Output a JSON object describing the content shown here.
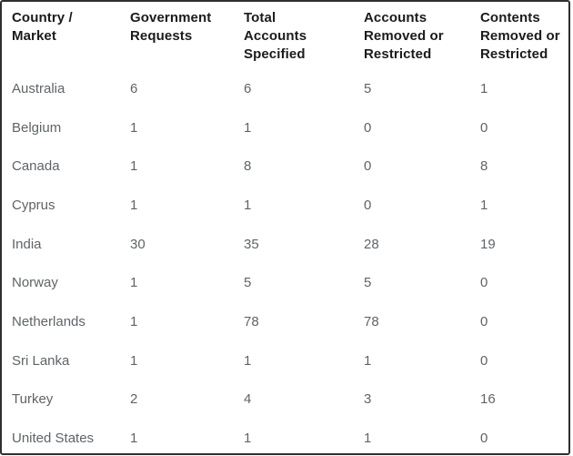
{
  "chart_data": {
    "type": "table",
    "columns": [
      "Country / Market",
      "Government Requests",
      "Total Accounts Specified",
      "Accounts Removed or Restricted",
      "Contents Removed or Restricted"
    ],
    "rows": [
      [
        "Australia",
        "6",
        "6",
        "5",
        "1"
      ],
      [
        "Belgium",
        "1",
        "1",
        "0",
        "0"
      ],
      [
        "Canada",
        "1",
        "8",
        "0",
        "8"
      ],
      [
        "Cyprus",
        "1",
        "1",
        "0",
        "1"
      ],
      [
        "India",
        "30",
        "35",
        "28",
        "19"
      ],
      [
        "Norway",
        "1",
        "5",
        "5",
        "0"
      ],
      [
        "Netherlands",
        "1",
        "78",
        "78",
        "0"
      ],
      [
        "Sri Lanka",
        "1",
        "1",
        "1",
        "0"
      ],
      [
        "Turkey",
        "2",
        "4",
        "3",
        "16"
      ],
      [
        "United States",
        "1",
        "1",
        "1",
        "0"
      ]
    ],
    "layout": {
      "grid": false,
      "header_position": "top",
      "column_alignment": "left"
    }
  },
  "colors": {
    "table_border": "#2f2f2f",
    "header_text": "#1b1b1b",
    "body_text": "#5f6468",
    "background": "#ffffff"
  }
}
